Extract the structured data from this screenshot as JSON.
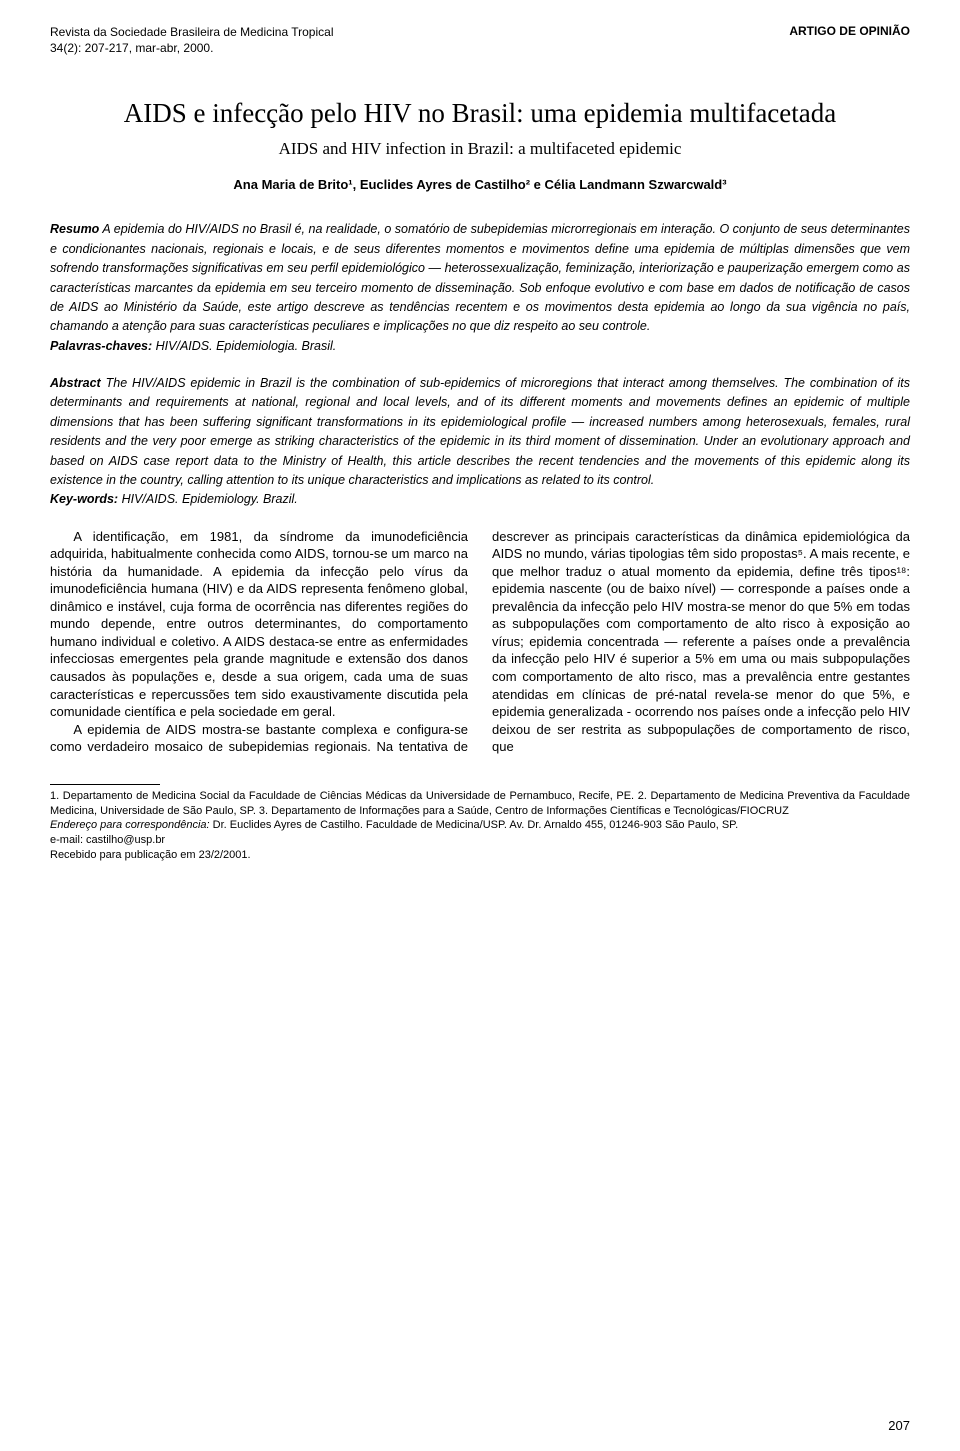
{
  "header": {
    "journal_name": "Revista da Sociedade Brasileira de Medicina Tropical",
    "issue_line": "34(2): 207-217, mar-abr, 2000.",
    "article_type": "ARTIGO DE OPINIÃO"
  },
  "title": "AIDS e infecção pelo HIV no Brasil: uma epidemia multifacetada",
  "subtitle": "AIDS and HIV infection in Brazil: a multifaceted epidemic",
  "authors_html": "Ana Maria de Brito¹, Euclides Ayres de Castilho² e Célia Landmann Szwarcwald³",
  "resumo": {
    "label": "Resumo",
    "text": "A epidemia do HIV/AIDS no Brasil é, na realidade, o somatório de subepidemias microrregionais em interação. O conjunto de seus determinantes e condicionantes nacionais, regionais e locais, e de seus diferentes momentos e movimentos define uma epidemia de múltiplas dimensões que vem sofrendo transformações significativas em seu perfil epidemiológico — heterossexualização, feminização, interiorização e pauperização emergem como as características marcantes da epidemia em seu terceiro momento de disseminação. Sob enfoque evolutivo e com base em dados de notificação de casos de AIDS ao Ministério da Saúde, este artigo descreve as tendências recentem e os movimentos desta epidemia ao longo da sua vigência no país, chamando a atenção para suas características peculiares e implicações no que diz respeito ao seu controle.",
    "kw_label": "Palavras-chaves:",
    "keywords": "HIV/AIDS. Epidemiologia. Brasil."
  },
  "abstract": {
    "label": "Abstract",
    "text": "The HIV/AIDS epidemic in Brazil is the combination of sub-epidemics of microregions that interact among themselves. The combination of its determinants and requirements at national, regional and local levels, and of its different moments and movements defines an epidemic of multiple dimensions that has been suffering significant transformations in its epidemiological profile — increased numbers among heterosexuals, females, rural residents and the very poor emerge as striking characteristics of the epidemic in its third moment of dissemination. Under an evolutionary approach and based on AIDS case report data to the Ministry of Health, this article describes the recent tendencies and the movements of this epidemic along its existence in the country, calling attention to its unique characteristics and implications as related to its control.",
    "kw_label": "Key-words:",
    "keywords": "HIV/AIDS. Epidemiology. Brazil."
  },
  "body": {
    "p1": "A identificação, em 1981, da síndrome da imunodeficiência adquirida, habitualmente conhecida como AIDS, tornou-se um marco na história da humanidade. A epidemia da infecção pelo vírus da imunodeficiência humana (HIV) e da AIDS representa fenômeno global, dinâmico e instável, cuja forma de ocorrência nas diferentes regiões do mundo depende, entre outros determinantes, do comportamento humano individual e coletivo. A AIDS destaca-se entre as enfermidades infecciosas emergentes pela grande magnitude e extensão dos danos causados às populações e, desde a sua origem, cada uma de suas características e repercussões tem sido exaustivamente discutida pela comunidade científica e pela sociedade em geral.",
    "p2": "A epidemia de AIDS mostra-se bastante complexa e configura-se como verdadeiro mosaico de subepidemias regionais. Na tentativa de descrever as principais características da dinâmica epidemiológica da AIDS no mundo, várias tipologias têm sido propostas⁵. A mais recente, e que melhor traduz o atual momento da epidemia, define três tipos¹⁸: epidemia nascente (ou de baixo nível) — corresponde a países onde a prevalência da infecção pelo HIV mostra-se menor do que 5% em todas as subpopulações com comportamento de alto risco à exposição ao vírus; epidemia concentrada — referente a países onde a prevalência da infecção pelo HIV é superior a 5% em uma ou mais subpopulações com comportamento de alto risco, mas a prevalência entre gestantes atendidas em clínicas de pré-natal revela-se menor do que 5%, e epidemia generalizada - ocorrendo nos países onde a infecção pelo HIV deixou de ser restrita as subpopulações de comportamento de risco, que"
  },
  "footnotes": {
    "affiliations": "1. Departamento de Medicina Social da Faculdade de Ciências Médicas da Universidade de Pernambuco, Recife, PE. 2. Departamento de Medicina Preventiva da Faculdade Medicina, Universidade de São Paulo, SP. 3. Departamento de Informações para a Saúde, Centro de Informações Científicas e Tecnológicas/FIOCRUZ",
    "address_label": "Endereço para correspondência:",
    "address": "Dr. Euclides Ayres de Castilho. Faculdade de Medicina/USP. Av. Dr. Arnaldo 455, 01246-903 São Paulo, SP.",
    "email_line": "e-mail: castilho@usp.br",
    "received": "Recebido para publicação em 23/2/2001."
  },
  "page_number": "207",
  "colors": {
    "text": "#000000",
    "background": "#ffffff"
  }
}
